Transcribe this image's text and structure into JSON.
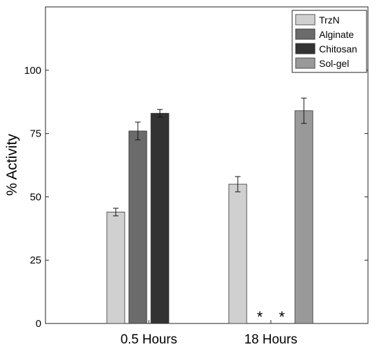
{
  "chart_data": {
    "type": "bar",
    "categories": [
      "0.5 Hours",
      "18 Hours"
    ],
    "series": [
      {
        "name": "TrzN",
        "color": "#d0d0d0",
        "values": [
          44,
          55
        ],
        "errors": [
          1.5,
          3
        ]
      },
      {
        "name": "Alginate",
        "color": "#6b6b6b",
        "values": [
          76,
          null
        ],
        "errors": [
          3.5,
          null
        ]
      },
      {
        "name": "Chitosan",
        "color": "#333333",
        "values": [
          83,
          null
        ],
        "errors": [
          1.5,
          null
        ]
      },
      {
        "name": "Sol-gel",
        "color": "#999999",
        "values": [
          null,
          84
        ],
        "errors": [
          null,
          5
        ]
      }
    ],
    "annotations": [
      {
        "text": "*",
        "category": "18 Hours",
        "series": "Alginate"
      },
      {
        "text": "*",
        "category": "18 Hours",
        "series": "Chitosan"
      }
    ],
    "ylabel": "% Activity",
    "xlabel": "",
    "title": "",
    "ylim": [
      0,
      125
    ],
    "yticks": [
      "0",
      "25",
      "50",
      "75",
      "100"
    ],
    "ytick_values": [
      0,
      25,
      50,
      75,
      100
    ],
    "grid": false,
    "legend_position": "top-right"
  }
}
